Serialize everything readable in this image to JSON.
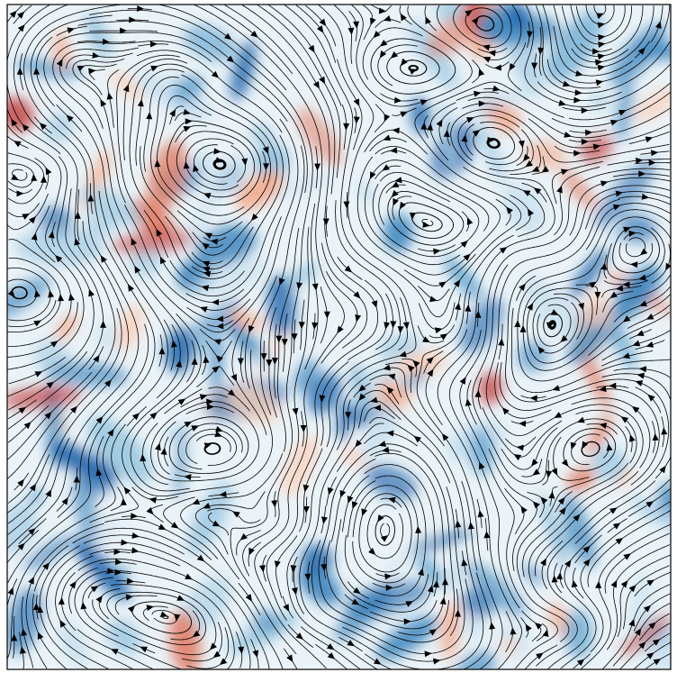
{
  "chart_data": {
    "type": "streamplot"
  }
}
